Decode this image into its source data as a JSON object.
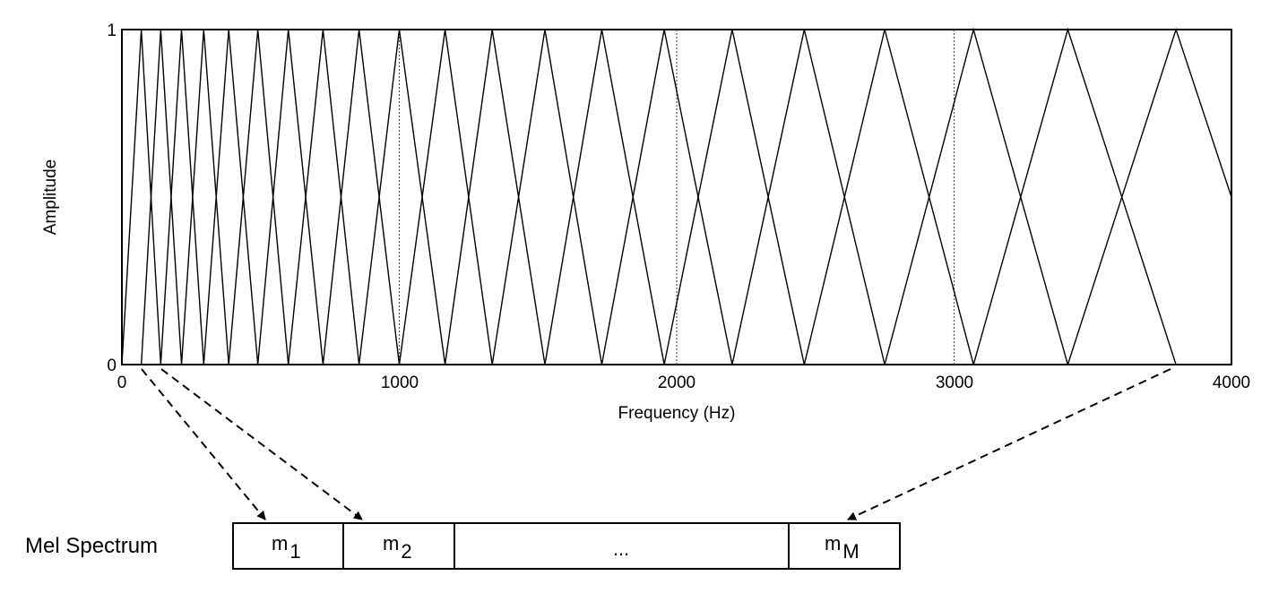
{
  "chart_data": {
    "type": "line",
    "title": "",
    "xlabel": "Frequency (Hz)",
    "ylabel": "Amplitude",
    "xlim": [
      0,
      4000
    ],
    "ylim": [
      0,
      1
    ],
    "x_ticks": [
      "0",
      "1000",
      "2000",
      "3000",
      "4000"
    ],
    "y_ticks": [
      "0",
      "1"
    ],
    "reference_lines_x": [
      1000,
      2000,
      3000
    ],
    "filter_centers_hz": [
      70,
      140,
      215,
      295,
      385,
      490,
      600,
      725,
      855,
      1000,
      1165,
      1335,
      1525,
      1730,
      1955,
      2200,
      2460,
      2750,
      3070,
      3410,
      3800,
      4200
    ]
  },
  "mel_spectrum": {
    "label": "Mel Spectrum",
    "cells": [
      {
        "main": "m",
        "sub": "1"
      },
      {
        "main": "m",
        "sub": "2"
      },
      {
        "main": "...",
        "sub": ""
      },
      {
        "main": "m",
        "sub": "M"
      }
    ]
  }
}
